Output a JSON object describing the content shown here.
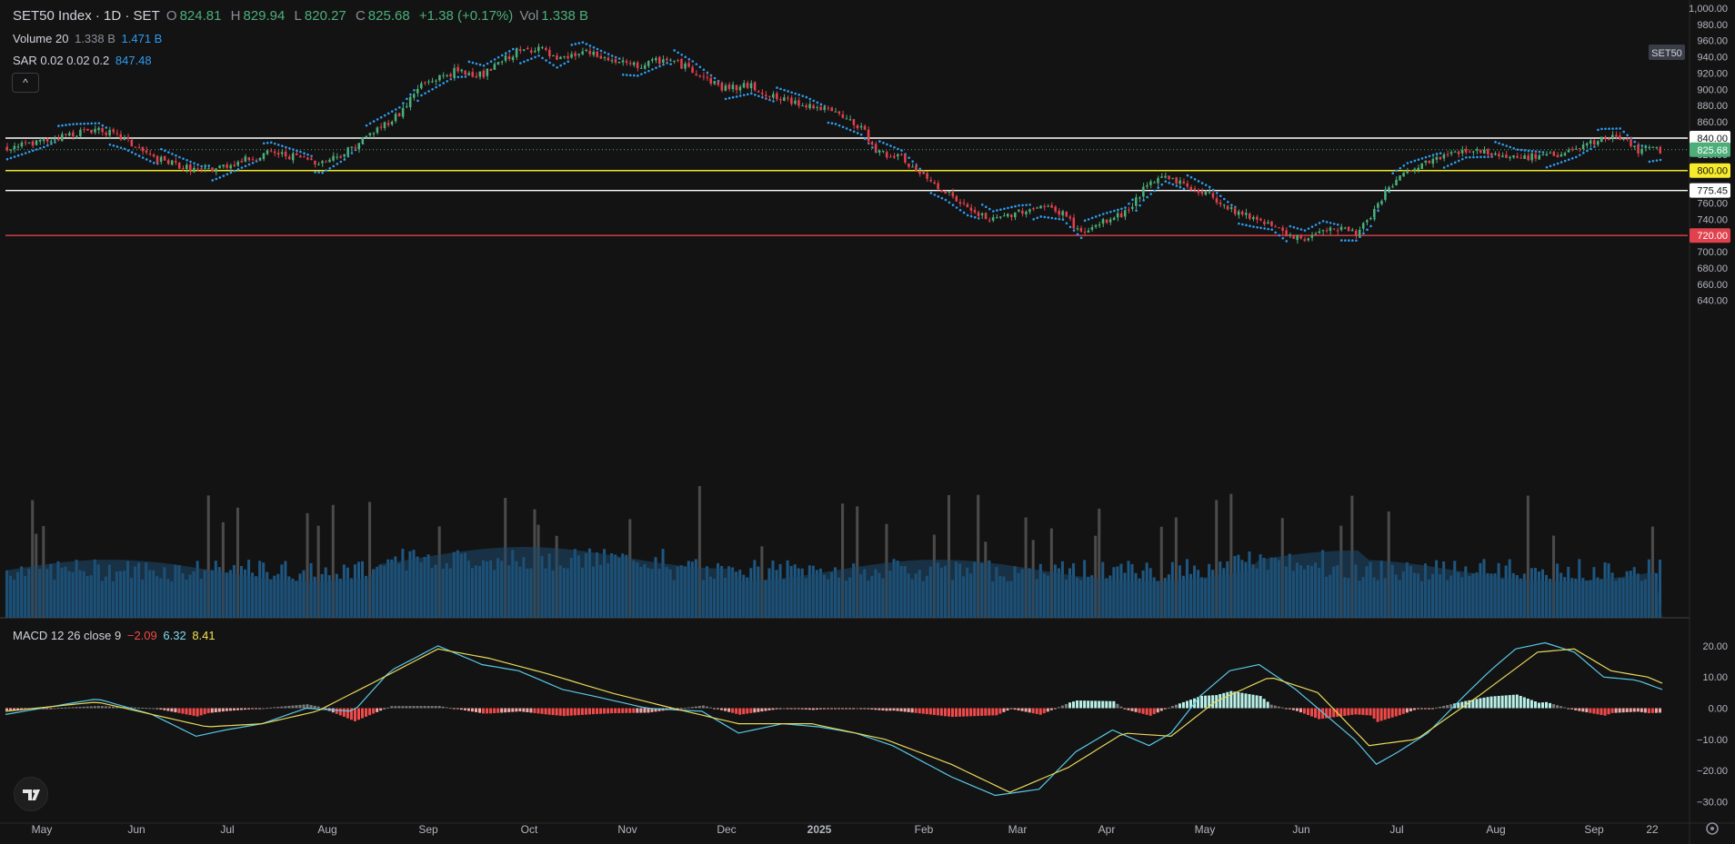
{
  "header": {
    "symbol": "SET50 Index · 1D · SET",
    "o_label": "O",
    "o_value": "824.81",
    "h_label": "H",
    "h_value": "829.94",
    "l_label": "L",
    "l_value": "820.27",
    "c_label": "C",
    "c_value": "825.68",
    "change": "+1.38 (+0.17%)",
    "vol_label": "Vol",
    "vol_value": "1.338 B"
  },
  "volume_legend": {
    "name": "Volume 20",
    "v1": "1.338 B",
    "v2": "1.471 B"
  },
  "sar_legend": {
    "name": "SAR 0.02 0.02 0.2",
    "value": "847.48"
  },
  "macd_legend": {
    "name": "MACD 12 26 close 9",
    "v1": "−2.09",
    "v2": "6.32",
    "v3": "8.41"
  },
  "collapse_glyph": "^",
  "symbol_badge": "SET50",
  "colors": {
    "background": "#131313",
    "up": "#4caf7a",
    "down": "#e0414d",
    "sar": "#2d9bf0",
    "volume": "#1f5f8f",
    "volume_ma": "#1e4a6e",
    "macd_line": "#58c9e8",
    "signal_line": "#e8d85a",
    "hist_up_strong": "#b8f0e8",
    "hist_up_weak": "#7a7a7a",
    "hist_down_strong": "#f04a4a",
    "hist_down_weak": "#f3a6a6",
    "level_white": "#ffffff",
    "level_yellow": "#f5ea2b",
    "level_red": "#e0414d"
  },
  "chart_data": [
    {
      "type": "candlestick",
      "title": "SET50 Index · 1D · SET",
      "x_labels": [
        "May",
        "Jun",
        "Jul",
        "Aug",
        "Sep",
        "Oct",
        "Nov",
        "Dec",
        "2025",
        "Feb",
        "Mar",
        "Apr",
        "May",
        "Jun",
        "Jul",
        "Aug",
        "Sep",
        "22"
      ],
      "y_ticks": [
        "1,000.00",
        "980.00",
        "960.00",
        "940.00",
        "920.00",
        "900.00",
        "880.00",
        "860.00",
        "840.00",
        "820.00",
        "800.00",
        "780.00",
        "760.00",
        "740.00",
        "720.00",
        "700.00",
        "680.00",
        "660.00",
        "640.00"
      ],
      "ylim": [
        628,
        1000
      ],
      "close_path": [
        [
          0,
          828
        ],
        [
          10,
          836
        ],
        [
          18,
          846
        ],
        [
          25,
          852
        ],
        [
          32,
          838
        ],
        [
          40,
          815
        ],
        [
          47,
          806
        ],
        [
          53,
          799
        ],
        [
          58,
          804
        ],
        [
          64,
          812
        ],
        [
          72,
          822
        ],
        [
          80,
          816
        ],
        [
          86,
          810
        ],
        [
          92,
          822
        ],
        [
          100,
          848
        ],
        [
          107,
          870
        ],
        [
          113,
          906
        ],
        [
          122,
          922
        ],
        [
          130,
          918
        ],
        [
          138,
          944
        ],
        [
          145,
          952
        ],
        [
          150,
          934
        ],
        [
          157,
          946
        ],
        [
          165,
          935
        ],
        [
          172,
          928
        ],
        [
          180,
          938
        ],
        [
          187,
          924
        ],
        [
          195,
          902
        ],
        [
          203,
          904
        ],
        [
          210,
          888
        ],
        [
          218,
          882
        ],
        [
          226,
          870
        ],
        [
          233,
          852
        ],
        [
          238,
          822
        ],
        [
          244,
          815
        ],
        [
          250,
          792
        ],
        [
          256,
          775
        ],
        [
          262,
          752
        ],
        [
          269,
          738
        ],
        [
          276,
          750
        ],
        [
          282,
          756
        ],
        [
          288,
          748
        ],
        [
          293,
          722
        ],
        [
          299,
          736
        ],
        [
          305,
          748
        ],
        [
          310,
          776
        ],
        [
          316,
          795
        ],
        [
          322,
          780
        ],
        [
          328,
          770
        ],
        [
          334,
          752
        ],
        [
          340,
          742
        ],
        [
          345,
          735
        ],
        [
          349,
          718
        ],
        [
          354,
          715
        ],
        [
          359,
          730
        ],
        [
          364,
          728
        ],
        [
          368,
          725
        ],
        [
          372,
          740
        ],
        [
          376,
          775
        ],
        [
          382,
          798
        ],
        [
          390,
          815
        ],
        [
          398,
          826
        ],
        [
          405,
          822
        ],
        [
          412,
          816
        ],
        [
          420,
          818
        ],
        [
          428,
          825
        ],
        [
          435,
          838
        ],
        [
          440,
          842
        ],
        [
          445,
          825
        ]
      ],
      "annotations": [
        "840.00",
        "825.68",
        "800.00",
        "775.45",
        "720.00",
        "SET50"
      ],
      "horizontal_levels": [
        {
          "value": 840.0,
          "color": "#ffffff"
        },
        {
          "value": 800.0,
          "color": "#f5ea2b"
        },
        {
          "value": 775.45,
          "color": "#ffffff"
        },
        {
          "value": 720.0,
          "color": "#e0414d"
        }
      ],
      "last_price": 825.68,
      "series": [
        {
          "name": "SAR 0.02 0.02 0.2"
        },
        {
          "name": "Volume 20"
        }
      ]
    },
    {
      "type": "line",
      "title": "MACD 12 26 close 9",
      "y_ticks": [
        "20.00",
        "10.00",
        "0.00",
        "−10.00",
        "−20.00",
        "−30.00"
      ],
      "ylim": [
        -34,
        27
      ],
      "macd_path": [
        [
          0,
          -2
        ],
        [
          25,
          3
        ],
        [
          40,
          -2
        ],
        [
          52,
          -9
        ],
        [
          60,
          -7
        ],
        [
          70,
          -5
        ],
        [
          82,
          0
        ],
        [
          95,
          -1
        ],
        [
          105,
          12
        ],
        [
          118,
          20
        ],
        [
          130,
          14
        ],
        [
          140,
          12
        ],
        [
          152,
          6
        ],
        [
          160,
          4
        ],
        [
          175,
          0
        ],
        [
          190,
          -1
        ],
        [
          200,
          -8
        ],
        [
          212,
          -5
        ],
        [
          222,
          -6
        ],
        [
          232,
          -8
        ],
        [
          242,
          -12
        ],
        [
          258,
          -22
        ],
        [
          270,
          -28
        ],
        [
          282,
          -26
        ],
        [
          292,
          -14
        ],
        [
          302,
          -7
        ],
        [
          312,
          -12
        ],
        [
          318,
          -8
        ],
        [
          326,
          4
        ],
        [
          334,
          12
        ],
        [
          342,
          14
        ],
        [
          352,
          6
        ],
        [
          360,
          -2
        ],
        [
          368,
          -10
        ],
        [
          374,
          -18
        ],
        [
          380,
          -14
        ],
        [
          388,
          -8
        ],
        [
          398,
          4
        ],
        [
          405,
          12
        ],
        [
          412,
          19
        ],
        [
          420,
          21
        ],
        [
          428,
          18
        ],
        [
          436,
          10
        ],
        [
          445,
          9
        ],
        [
          452,
          6
        ]
      ],
      "signal_path": [
        [
          0,
          -1
        ],
        [
          25,
          2
        ],
        [
          40,
          -2
        ],
        [
          55,
          -6
        ],
        [
          70,
          -5
        ],
        [
          85,
          -1
        ],
        [
          100,
          8
        ],
        [
          118,
          19
        ],
        [
          132,
          16
        ],
        [
          148,
          11
        ],
        [
          165,
          5
        ],
        [
          182,
          0
        ],
        [
          200,
          -5
        ],
        [
          220,
          -5
        ],
        [
          240,
          -10
        ],
        [
          258,
          -18
        ],
        [
          274,
          -27
        ],
        [
          290,
          -19
        ],
        [
          305,
          -8
        ],
        [
          318,
          -9
        ],
        [
          330,
          2
        ],
        [
          345,
          10
        ],
        [
          358,
          5
        ],
        [
          372,
          -12
        ],
        [
          385,
          -10
        ],
        [
          402,
          4
        ],
        [
          418,
          18
        ],
        [
          428,
          19
        ],
        [
          438,
          12
        ],
        [
          448,
          10
        ],
        [
          452,
          8
        ]
      ]
    }
  ]
}
